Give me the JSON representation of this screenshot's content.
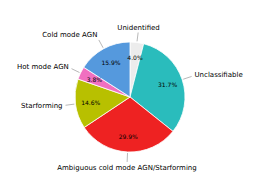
{
  "chart_data": {
    "type": "pie",
    "categories": [
      "Unidentified",
      "Unclassifiable",
      "Ambiguous cold mode AGN/Starforming",
      "Starforming",
      "Hot mode AGN",
      "Cold mode AGN"
    ],
    "values": [
      4.0,
      31.7,
      29.9,
      14.6,
      3.8,
      15.9
    ],
    "value_labels": [
      "4.0%",
      "31.7%",
      "29.9%",
      "14.6%",
      "3.8%",
      "15.9%"
    ],
    "colors": [
      "#ececec",
      "#2abcbc",
      "#ee2222",
      "#b8c000",
      "#f070c0",
      "#5599dd"
    ],
    "data_labels": true
  }
}
